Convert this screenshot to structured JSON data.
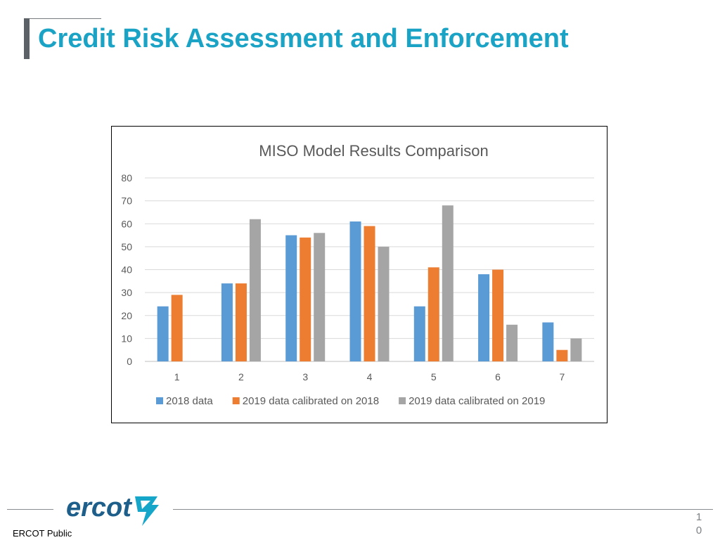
{
  "slide": {
    "title": "Credit Risk Assessment and Enforcement",
    "footer_label": "ERCOT Public",
    "page_number": [
      "1",
      "0"
    ],
    "logo_text": "ercot",
    "colors": {
      "title": "#1ba3c6",
      "accent_bar": "#5b6166",
      "logo_blue": "#1d5f8a",
      "logo_cyan": "#16a6c9"
    }
  },
  "chart_data": {
    "type": "bar",
    "title": "MISO Model Results Comparison",
    "xlabel": "",
    "ylabel": "",
    "categories": [
      "1",
      "2",
      "3",
      "4",
      "5",
      "6",
      "7"
    ],
    "ylim": [
      0,
      80
    ],
    "yticks": [
      0,
      10,
      20,
      30,
      40,
      50,
      60,
      70,
      80
    ],
    "grid": true,
    "legend_position": "bottom",
    "series": [
      {
        "name": "2018 data",
        "color": "#5b9bd5",
        "values": [
          24,
          34,
          55,
          61,
          24,
          38,
          17
        ]
      },
      {
        "name": "2019 data calibrated on 2018",
        "color": "#ed7d31",
        "values": [
          29,
          34,
          54,
          59,
          41,
          40,
          5
        ]
      },
      {
        "name": "2019 data calibrated on 2019",
        "color": "#a5a5a5",
        "values": [
          0,
          62,
          56,
          50,
          68,
          16,
          10
        ]
      }
    ]
  }
}
